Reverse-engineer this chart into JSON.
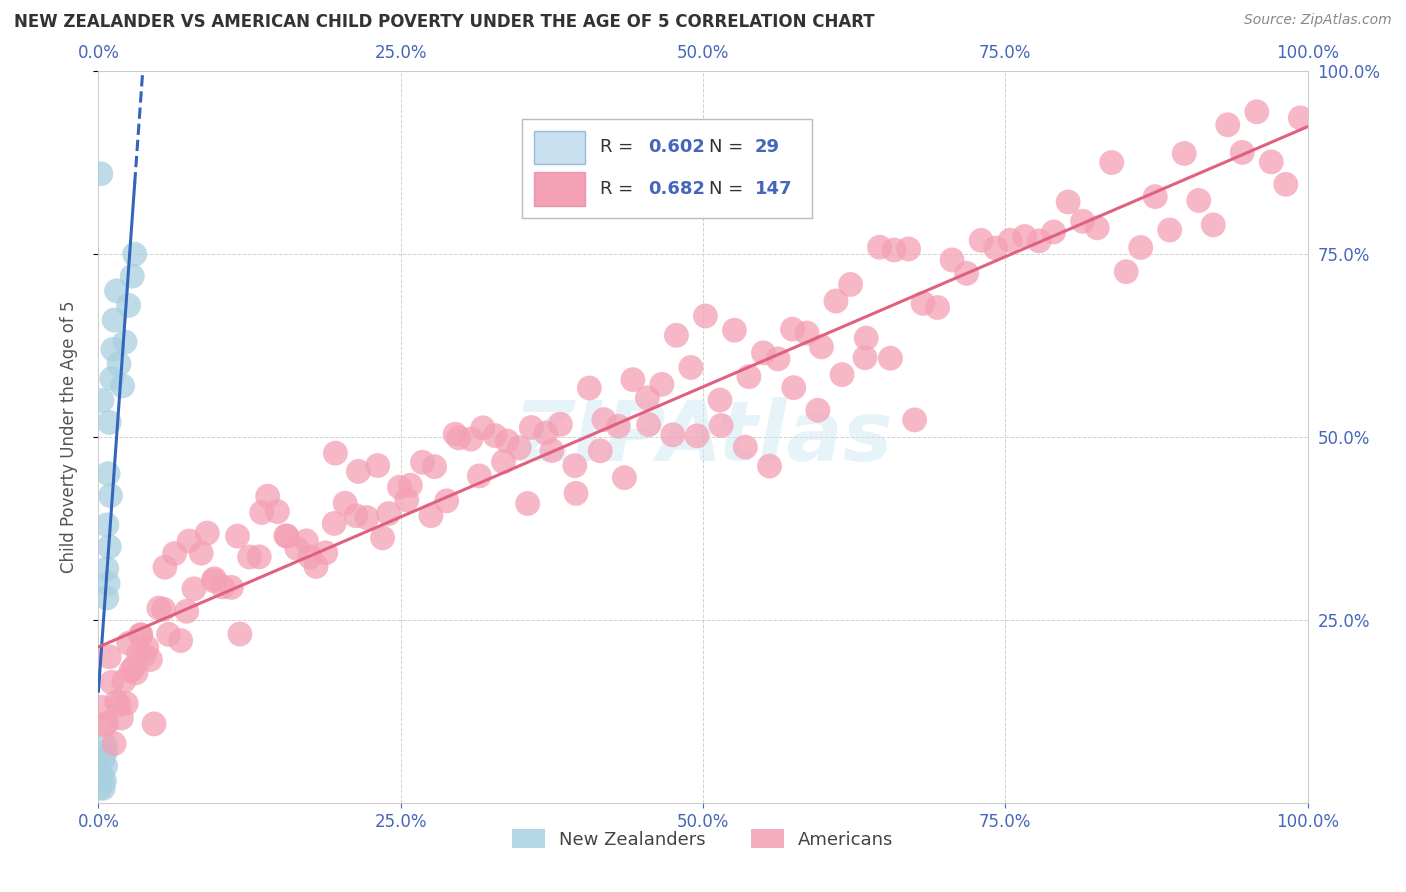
{
  "title": "NEW ZEALANDER VS AMERICAN CHILD POVERTY UNDER THE AGE OF 5 CORRELATION CHART",
  "source": "Source: ZipAtlas.com",
  "ylabel": "Child Poverty Under the Age of 5",
  "xlim": [
    0.0,
    1.0
  ],
  "ylim": [
    0.0,
    1.0
  ],
  "xtick_values": [
    0.0,
    0.25,
    0.5,
    0.75,
    1.0
  ],
  "xtick_labels": [
    "0.0%",
    "25.0%",
    "50.0%",
    "75.0%",
    "100.0%"
  ],
  "ytick_values": [
    0.25,
    0.5,
    0.75,
    1.0
  ],
  "ytick_labels": [
    "25.0%",
    "50.0%",
    "75.0%",
    "100.0%"
  ],
  "nz_color": "#a8cfe0",
  "us_color": "#f4a0b5",
  "nz_line_color": "#3366bb",
  "us_line_color": "#e06080",
  "watermark": "ZIPAtlas",
  "nz_R": 0.602,
  "nz_N": 29,
  "us_R": 0.682,
  "us_N": 147,
  "nz_x": [
    0.001,
    0.002,
    0.003,
    0.004,
    0.004,
    0.005,
    0.005,
    0.006,
    0.006,
    0.007,
    0.007,
    0.007,
    0.008,
    0.008,
    0.009,
    0.009,
    0.01,
    0.011,
    0.012,
    0.013,
    0.015,
    0.017,
    0.02,
    0.022,
    0.025,
    0.028,
    0.03,
    0.002,
    0.003
  ],
  "nz_y": [
    0.02,
    0.04,
    0.035,
    0.02,
    0.06,
    0.03,
    0.08,
    0.05,
    0.07,
    0.28,
    0.32,
    0.38,
    0.3,
    0.45,
    0.35,
    0.52,
    0.42,
    0.58,
    0.62,
    0.66,
    0.7,
    0.6,
    0.57,
    0.63,
    0.68,
    0.72,
    0.75,
    0.86,
    0.55
  ],
  "us_x": [
    0.003,
    0.005,
    0.007,
    0.009,
    0.011,
    0.013,
    0.015,
    0.017,
    0.019,
    0.021,
    0.023,
    0.025,
    0.027,
    0.029,
    0.031,
    0.033,
    0.035,
    0.038,
    0.04,
    0.043,
    0.046,
    0.05,
    0.054,
    0.058,
    0.063,
    0.068,
    0.073,
    0.079,
    0.085,
    0.09,
    0.096,
    0.103,
    0.11,
    0.117,
    0.125,
    0.133,
    0.14,
    0.148,
    0.156,
    0.164,
    0.172,
    0.18,
    0.188,
    0.196,
    0.204,
    0.213,
    0.222,
    0.231,
    0.24,
    0.249,
    0.258,
    0.268,
    0.278,
    0.288,
    0.298,
    0.308,
    0.318,
    0.328,
    0.338,
    0.348,
    0.358,
    0.37,
    0.382,
    0.394,
    0.406,
    0.418,
    0.43,
    0.442,
    0.454,
    0.466,
    0.478,
    0.49,
    0.502,
    0.514,
    0.526,
    0.538,
    0.55,
    0.562,
    0.574,
    0.586,
    0.598,
    0.61,
    0.622,
    0.634,
    0.646,
    0.658,
    0.67,
    0.682,
    0.694,
    0.706,
    0.718,
    0.73,
    0.742,
    0.754,
    0.766,
    0.778,
    0.79,
    0.802,
    0.814,
    0.826,
    0.838,
    0.85,
    0.862,
    0.874,
    0.886,
    0.898,
    0.91,
    0.922,
    0.934,
    0.946,
    0.958,
    0.97,
    0.982,
    0.994,
    0.035,
    0.055,
    0.075,
    0.095,
    0.115,
    0.135,
    0.155,
    0.175,
    0.195,
    0.215,
    0.235,
    0.255,
    0.275,
    0.295,
    0.315,
    0.335,
    0.355,
    0.375,
    0.395,
    0.415,
    0.435,
    0.455,
    0.475,
    0.495,
    0.515,
    0.535,
    0.555,
    0.575,
    0.595,
    0.615,
    0.635,
    0.655,
    0.675
  ],
  "us_y": [
    0.06,
    0.09,
    0.07,
    0.11,
    0.09,
    0.12,
    0.1,
    0.14,
    0.12,
    0.15,
    0.13,
    0.16,
    0.15,
    0.18,
    0.16,
    0.19,
    0.17,
    0.21,
    0.2,
    0.23,
    0.21,
    0.24,
    0.23,
    0.26,
    0.25,
    0.28,
    0.26,
    0.3,
    0.28,
    0.31,
    0.3,
    0.28,
    0.33,
    0.31,
    0.35,
    0.33,
    0.37,
    0.35,
    0.38,
    0.36,
    0.4,
    0.38,
    0.41,
    0.4,
    0.43,
    0.41,
    0.44,
    0.43,
    0.46,
    0.44,
    0.47,
    0.45,
    0.48,
    0.46,
    0.5,
    0.48,
    0.51,
    0.49,
    0.52,
    0.5,
    0.54,
    0.52,
    0.55,
    0.53,
    0.56,
    0.54,
    0.58,
    0.56,
    0.59,
    0.57,
    0.61,
    0.59,
    0.62,
    0.6,
    0.63,
    0.61,
    0.65,
    0.63,
    0.66,
    0.64,
    0.67,
    0.65,
    0.69,
    0.67,
    0.7,
    0.68,
    0.71,
    0.69,
    0.72,
    0.7,
    0.74,
    0.72,
    0.75,
    0.73,
    0.76,
    0.74,
    0.78,
    0.75,
    0.79,
    0.77,
    0.8,
    0.78,
    0.81,
    0.79,
    0.83,
    0.81,
    0.84,
    0.82,
    0.85,
    0.83,
    0.87,
    0.84,
    0.88,
    0.86,
    0.24,
    0.29,
    0.32,
    0.31,
    0.34,
    0.36,
    0.35,
    0.38,
    0.37,
    0.4,
    0.39,
    0.42,
    0.41,
    0.43,
    0.42,
    0.45,
    0.44,
    0.46,
    0.45,
    0.48,
    0.47,
    0.49,
    0.48,
    0.51,
    0.5,
    0.53,
    0.52,
    0.55,
    0.53,
    0.56,
    0.54,
    0.57,
    0.56
  ],
  "tick_color": "#4466bb",
  "axis_label_color": "#555555",
  "grid_color": "#cccccc",
  "title_color": "#333333",
  "source_color": "#888888",
  "legend_border_color": "#bbbbbb",
  "nz_legend_fill": "#c8dff0",
  "us_legend_fill": "#f4a0b5"
}
